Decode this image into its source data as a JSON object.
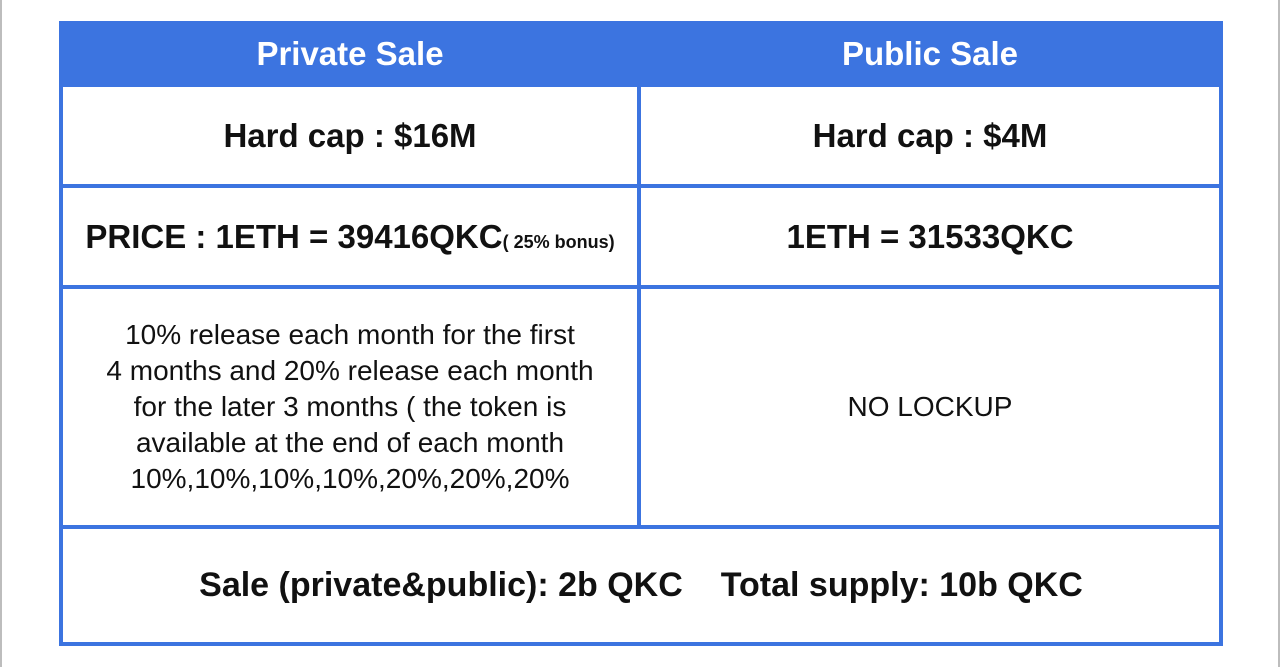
{
  "headers": {
    "private": "Private Sale",
    "public": "Public Sale"
  },
  "hard_cap": {
    "private": "Hard cap : $16M",
    "public": "Hard cap : $4M"
  },
  "price": {
    "private_main": "PRICE : 1ETH = 39416QKC",
    "private_bonus": "( 25% bonus)",
    "public": "1ETH = 31533QKC"
  },
  "lockup": {
    "private_lines": [
      "10% release each month for the first",
      "4 months and 20% release each month",
      "for the later 3 months ( the token is",
      "available at the end of each month",
      "10%,10%,10%,10%,20%,20%,20%"
    ],
    "public": "NO LOCKUP"
  },
  "supply": {
    "sale": "Sale (private&public): 2b QKC",
    "total": "Total supply: 10b QKC"
  },
  "colors": {
    "accent": "#3c74e0",
    "header_text": "#ffffff",
    "body_text": "#111111"
  }
}
